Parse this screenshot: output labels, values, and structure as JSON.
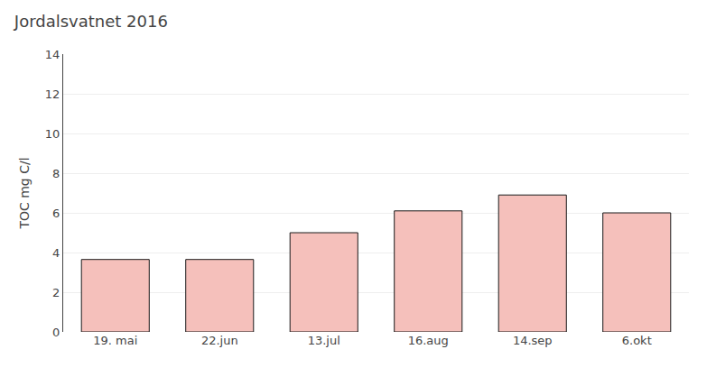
{
  "chart_data": {
    "type": "bar",
    "title": "Jordalsvatnet 2016",
    "ylabel": "TOC mg C/l",
    "categories": [
      "19. mai",
      "22.jun",
      "13.jul",
      "16.aug",
      "14.sep",
      "6.okt"
    ],
    "values": [
      3.65,
      3.65,
      5.0,
      6.1,
      6.9,
      6.0
    ],
    "color": "#F5C0BB",
    "ylim": [
      0,
      14
    ],
    "yticks": [
      0,
      2,
      4,
      6,
      8,
      10,
      12,
      14
    ],
    "grid": true
  }
}
